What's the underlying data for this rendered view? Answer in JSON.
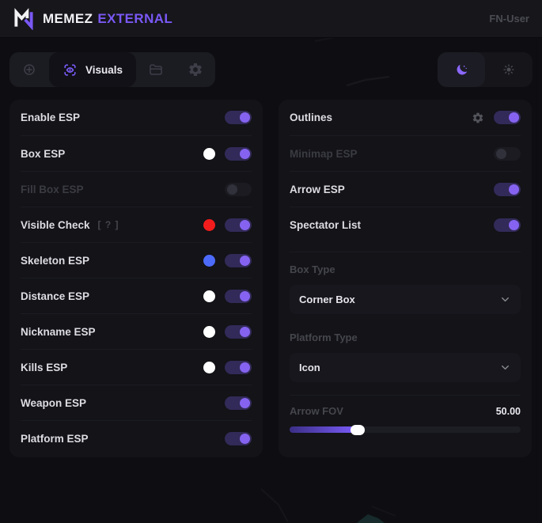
{
  "topbar": {
    "brand": {
      "name": "MEMEZ",
      "suffix": "EXTERNAL"
    },
    "user": "FN-User"
  },
  "toolbar": {
    "tabs": [
      {
        "icon": "crosshair-icon",
        "active": false
      },
      {
        "icon": "eye-scan-icon",
        "label": "Visuals",
        "active": true
      },
      {
        "icon": "folder-icon",
        "active": false
      },
      {
        "icon": "gear-icon",
        "active": false
      }
    ],
    "theme": [
      {
        "icon": "moon-icon",
        "active": true
      },
      {
        "icon": "sun-icon",
        "active": false
      }
    ]
  },
  "colors": {
    "accent": "#7c5cfc",
    "panel": "#131318",
    "background": "#0e0e12",
    "toggle_on_track": "#322a58",
    "toggle_on_knob": "#8563f0",
    "swatch_white": "#ffffff",
    "swatch_red": "#f31c1c",
    "swatch_blue": "#4d6bfa"
  },
  "panels": {
    "left": {
      "rows": [
        {
          "label": "Enable ESP",
          "toggle": "on"
        },
        {
          "label": "Box ESP",
          "swatch": "#ffffff",
          "toggle": "on"
        },
        {
          "label": "Fill Box ESP",
          "toggle": "off",
          "disabled": true
        },
        {
          "label": "Visible Check",
          "help": "[ ? ]",
          "swatch": "#f31c1c",
          "toggle": "on"
        },
        {
          "label": "Skeleton ESP",
          "swatch": "#4d6bfa",
          "toggle": "on"
        },
        {
          "label": "Distance ESP",
          "swatch": "#ffffff",
          "toggle": "on"
        },
        {
          "label": "Nickname ESP",
          "swatch": "#ffffff",
          "toggle": "on"
        },
        {
          "label": "Kills ESP",
          "swatch": "#ffffff",
          "toggle": "on"
        },
        {
          "label": "Weapon ESP",
          "toggle": "on"
        },
        {
          "label": "Platform ESP",
          "toggle": "on"
        }
      ]
    },
    "right": {
      "rows": [
        {
          "label": "Outlines",
          "gear": true,
          "toggle": "on"
        },
        {
          "label": "Minimap ESP",
          "toggle": "off",
          "disabled": true
        },
        {
          "label": "Arrow ESP",
          "toggle": "on"
        },
        {
          "label": "Spectator List",
          "toggle": "on"
        }
      ],
      "selects": [
        {
          "label": "Box Type",
          "value": "Corner Box"
        },
        {
          "label": "Platform Type",
          "value": "Icon"
        }
      ],
      "slider": {
        "label": "Arrow FOV",
        "value": "50.00",
        "percent": 29.5
      }
    }
  }
}
